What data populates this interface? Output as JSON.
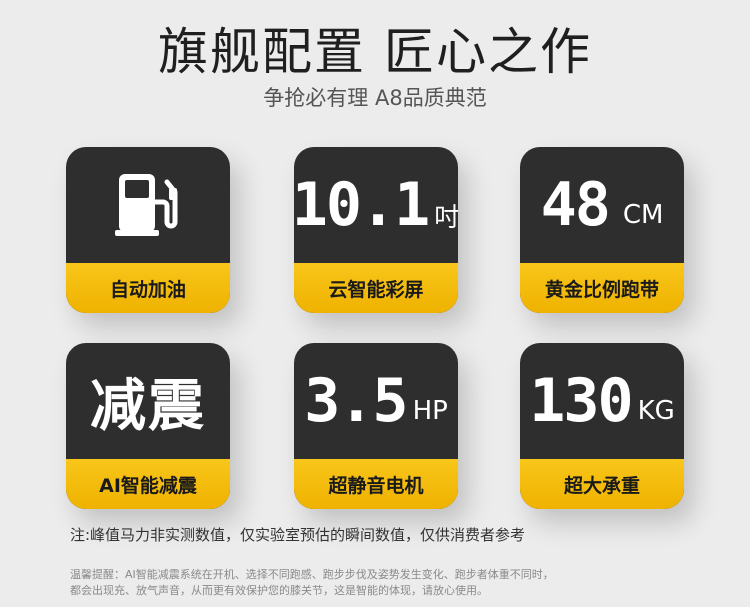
{
  "header": {
    "title": "旗舰配置 匠心之作",
    "subtitle": "争抢必有理  A8品质典范"
  },
  "cards": [
    {
      "label": "自动加油",
      "icon": "fuel-pump-icon"
    },
    {
      "value": "10.1",
      "unit": "吋",
      "label": "云智能彩屏"
    },
    {
      "value": "48",
      "unit": "CM",
      "label": "黄金比例跑带"
    },
    {
      "value": "减震",
      "label": "AI智能减震"
    },
    {
      "value": "3.5",
      "unit": "HP",
      "label": "超静音电机"
    },
    {
      "value": "130",
      "unit": "KG",
      "label": "超大承重"
    }
  ],
  "note": "注:峰值马力非实测数值，仅实验室预估的瞬间数值，仅供消费者参考",
  "footer": {
    "line1": "温馨提醒：AI智能减震系统在开机、选择不同跑感、跑步步伐及姿势发生变化、跑步者体重不同时，",
    "line2": "都会出现充、放气声音，从而更有效保护您的膝关节，这是智能的体现，请放心使用。"
  },
  "colors": {
    "card_dark": "#2e2e2e",
    "accent_yellow": "#f8c61a",
    "background": "#ececec"
  }
}
